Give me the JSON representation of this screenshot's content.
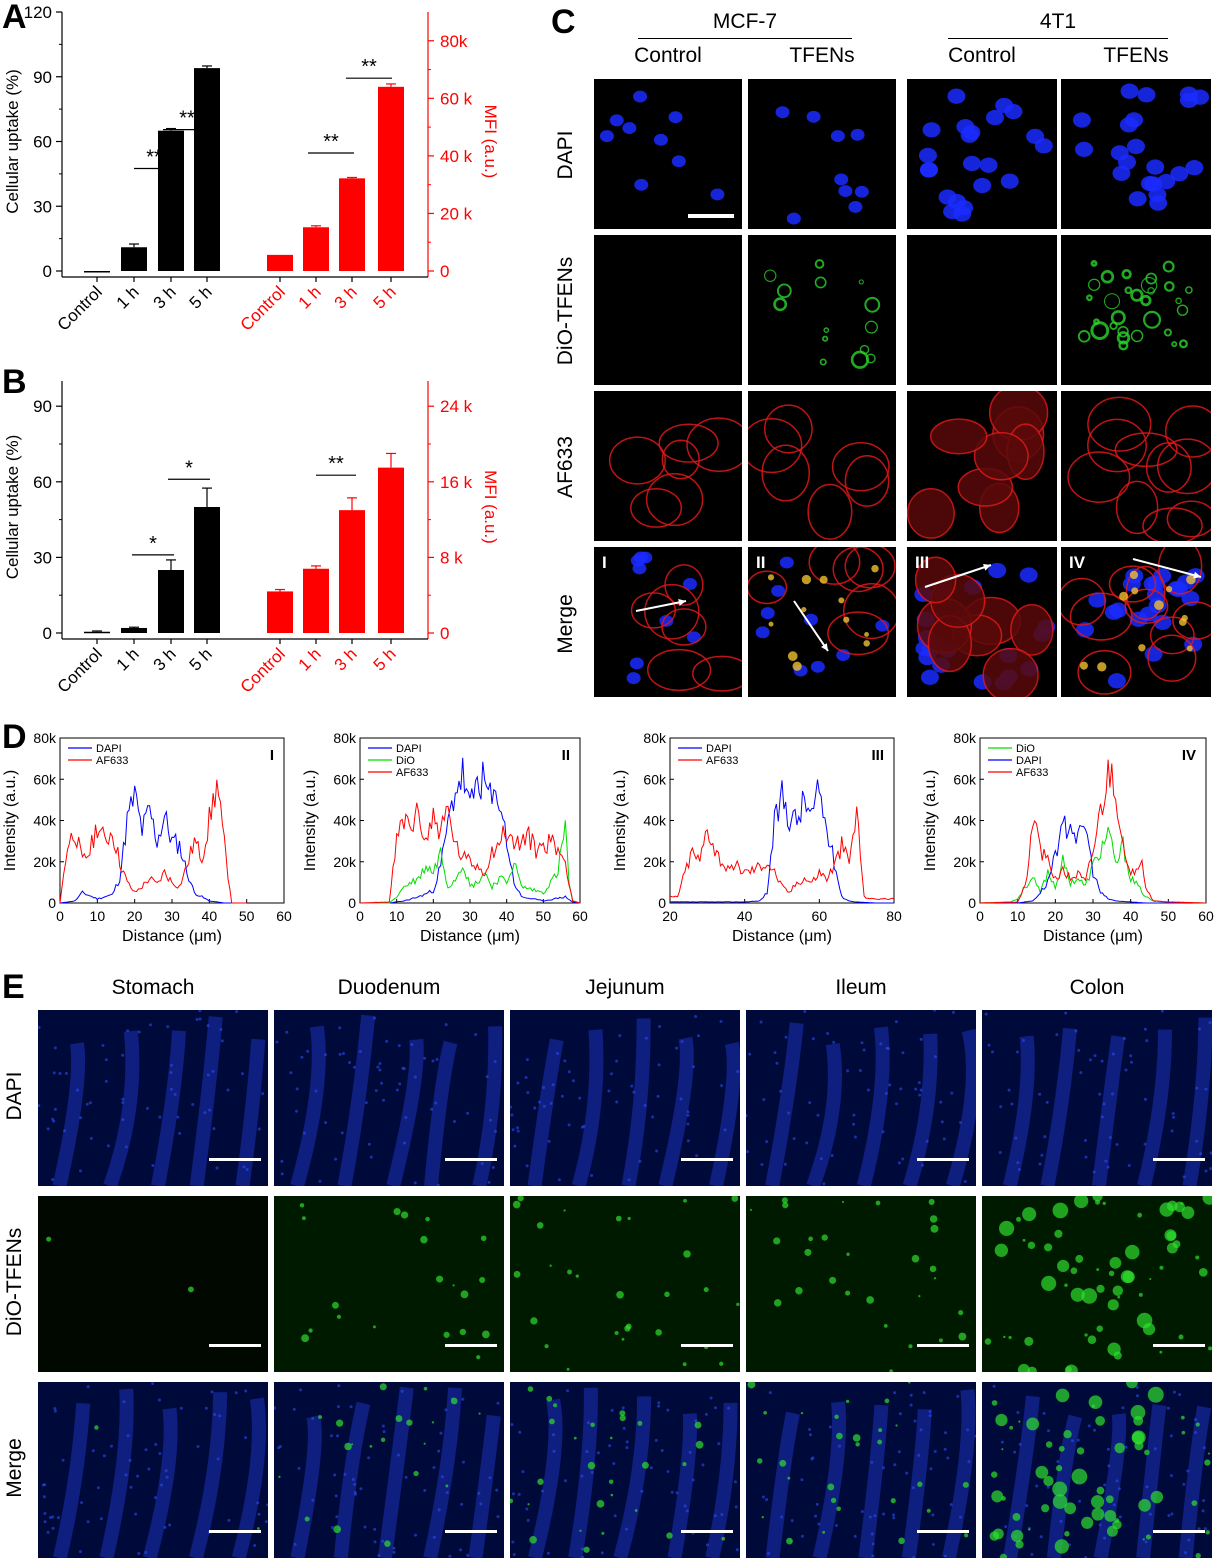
{
  "panels": {
    "A": "A",
    "B": "B",
    "C": "C",
    "D": "D",
    "E": "E"
  },
  "chart_data": [
    {
      "id": "A",
      "type": "bar",
      "left": {
        "ylabel": "Cellular uptake (%)",
        "categories": [
          "Control",
          "1 h",
          "3 h",
          "5 h"
        ],
        "values": [
          0,
          11,
          65,
          94
        ],
        "errors": [
          0,
          1.5,
          1,
          1
        ],
        "ylim": [
          0,
          120
        ],
        "ticks": [
          "0",
          "30",
          "60",
          "90",
          "120"
        ],
        "color": "#000000"
      },
      "right": {
        "ylabel": "MFI (a.u.)",
        "categories": [
          "Control",
          "1 h",
          "3 h",
          "5 h"
        ],
        "values": [
          5600,
          15200,
          32200,
          64000
        ],
        "errors": [
          0,
          500,
          300,
          1000
        ],
        "ylim": [
          0,
          90000
        ],
        "ticks": [
          "0",
          "20 k",
          "40 k",
          "60 k",
          "80k"
        ],
        "color": "#ff0000"
      },
      "sig": [
        "**",
        "**",
        "**",
        "**"
      ]
    },
    {
      "id": "B",
      "type": "bar",
      "left": {
        "ylabel": "Cellular uptake (%)",
        "categories": [
          "Control",
          "1 h",
          "3 h",
          "5 h"
        ],
        "values": [
          0.5,
          2,
          25,
          50
        ],
        "errors": [
          0.3,
          0.3,
          4,
          7.5
        ],
        "ylim": [
          0,
          100
        ],
        "ticks": [
          "0",
          "30",
          "60",
          "90"
        ],
        "color": "#000000"
      },
      "right": {
        "ylabel": "MFI (a.u.)",
        "categories": [
          "Control",
          "1 h",
          "3 h",
          "5 h"
        ],
        "values": [
          4400,
          6800,
          13000,
          17500
        ],
        "errors": [
          200,
          300,
          1300,
          1500
        ],
        "ylim": [
          0,
          26667
        ],
        "ticks": [
          "0",
          "8 k",
          "16 k",
          "24 k"
        ],
        "color": "#ff0000"
      },
      "sig": [
        "*",
        "*",
        "**"
      ]
    },
    {
      "id": "D-I",
      "type": "line",
      "tag": "I",
      "xlabel": "Distance (μm)",
      "ylabel": "Intensity (a.u.)",
      "xlim": [
        0,
        60
      ],
      "xticks": [
        "0",
        "10",
        "20",
        "30",
        "40",
        "50",
        "60"
      ],
      "ylim": [
        0,
        80000
      ],
      "yticks": [
        "0",
        "20k",
        "40k",
        "60k",
        "80k"
      ],
      "series": [
        {
          "name": "DAPI",
          "color": "#0000ff",
          "x": [
            0,
            4,
            6,
            10,
            14,
            16,
            18,
            20,
            22,
            24,
            26,
            28,
            30,
            32,
            34,
            36,
            40,
            44,
            50
          ],
          "y": [
            0,
            1000,
            5000,
            2000,
            4000,
            12000,
            40000,
            52000,
            35000,
            45000,
            30000,
            42000,
            30000,
            28000,
            15000,
            5000,
            1000,
            0,
            0
          ]
        },
        {
          "name": "AF633",
          "color": "#ff0000",
          "x": [
            0,
            2,
            4,
            6,
            8,
            10,
            12,
            14,
            16,
            18,
            20,
            22,
            24,
            26,
            28,
            30,
            32,
            34,
            36,
            38,
            40,
            42,
            44,
            46,
            48,
            50
          ],
          "y": [
            0,
            28000,
            35000,
            20000,
            25000,
            38000,
            30000,
            35000,
            20000,
            10000,
            5000,
            8000,
            12000,
            9000,
            15000,
            10000,
            8000,
            18000,
            30000,
            22000,
            40000,
            58000,
            28000,
            0,
            0,
            0
          ]
        }
      ]
    },
    {
      "id": "D-II",
      "type": "line",
      "tag": "II",
      "xlabel": "Distance (μm)",
      "ylabel": "Intensity (a.u.)",
      "xlim": [
        0,
        60
      ],
      "xticks": [
        "0",
        "10",
        "20",
        "30",
        "40",
        "50",
        "60"
      ],
      "ylim": [
        0,
        80000
      ],
      "yticks": [
        "0",
        "20k",
        "40k",
        "60k",
        "80k"
      ],
      "series": [
        {
          "name": "DAPI",
          "color": "#0000ff",
          "x": [
            0,
            8,
            12,
            16,
            20,
            22,
            24,
            26,
            28,
            30,
            32,
            34,
            36,
            38,
            40,
            42,
            44,
            50,
            56,
            58,
            60
          ],
          "y": [
            0,
            0,
            1000,
            3000,
            6000,
            18000,
            38000,
            55000,
            62000,
            45000,
            60000,
            58000,
            48000,
            52000,
            30000,
            10000,
            3000,
            1000,
            3000,
            500,
            0
          ]
        },
        {
          "name": "DiO",
          "color": "#00dd00",
          "x": [
            0,
            8,
            10,
            12,
            16,
            18,
            20,
            22,
            24,
            26,
            28,
            30,
            32,
            34,
            36,
            38,
            40,
            42,
            44,
            50,
            54,
            56,
            57,
            58,
            60
          ],
          "y": [
            0,
            0,
            3000,
            8000,
            12000,
            18000,
            15000,
            25000,
            8000,
            12000,
            20000,
            8000,
            10000,
            15000,
            8000,
            12000,
            10000,
            20000,
            8000,
            5000,
            15000,
            38000,
            10000,
            1000,
            0
          ]
        },
        {
          "name": "AF633",
          "color": "#ff0000",
          "x": [
            0,
            8,
            10,
            12,
            14,
            16,
            18,
            20,
            22,
            24,
            26,
            28,
            30,
            32,
            34,
            36,
            38,
            40,
            42,
            44,
            46,
            48,
            50,
            52,
            54,
            56,
            58,
            60
          ],
          "y": [
            0,
            500,
            30000,
            40000,
            38000,
            43000,
            30000,
            42000,
            35000,
            45000,
            28000,
            22000,
            20000,
            18000,
            15000,
            25000,
            30000,
            35000,
            28000,
            30000,
            32000,
            26000,
            28000,
            30000,
            26000,
            20000,
            1000,
            0
          ]
        }
      ]
    },
    {
      "id": "D-III",
      "type": "line",
      "tag": "III",
      "xlabel": "Distance (μm)",
      "ylabel": "Intensity (a.u.)",
      "xlim": [
        20,
        80
      ],
      "xticks": [
        "20",
        "40",
        "60",
        "80"
      ],
      "ylim": [
        0,
        80000
      ],
      "yticks": [
        "0",
        "20k",
        "40k",
        "60k",
        "80k"
      ],
      "series": [
        {
          "name": "DAPI",
          "color": "#0000ff",
          "x": [
            20,
            30,
            40,
            44,
            46,
            48,
            50,
            52,
            54,
            56,
            58,
            60,
            62,
            64,
            66,
            68,
            70,
            75,
            80
          ],
          "y": [
            500,
            500,
            500,
            1000,
            5000,
            38000,
            52000,
            42000,
            40000,
            50000,
            42000,
            55000,
            35000,
            20000,
            3000,
            1000,
            500,
            0,
            0
          ]
        },
        {
          "name": "AF633",
          "color": "#ff0000",
          "x": [
            20,
            22,
            24,
            26,
            28,
            30,
            32,
            34,
            36,
            38,
            40,
            42,
            44,
            46,
            48,
            50,
            52,
            54,
            56,
            58,
            60,
            62,
            64,
            66,
            68,
            70,
            72,
            74,
            80
          ],
          "y": [
            3000,
            3000,
            15000,
            25000,
            20000,
            38000,
            26000,
            20000,
            15000,
            18000,
            15000,
            16000,
            18000,
            20000,
            15000,
            8000,
            5000,
            10000,
            12000,
            10000,
            15000,
            12000,
            18000,
            28000,
            20000,
            45000,
            3000,
            2000,
            2000
          ]
        }
      ]
    },
    {
      "id": "D-IV",
      "type": "line",
      "tag": "IV",
      "xlabel": "Distance (μm)",
      "ylabel": "Intensity (a.u.)",
      "xlim": [
        0,
        60
      ],
      "xticks": [
        "0",
        "10",
        "20",
        "30",
        "40",
        "50",
        "60"
      ],
      "ylim": [
        0,
        80000
      ],
      "yticks": [
        "0",
        "20k",
        "40k",
        "60k",
        "80k"
      ],
      "series": [
        {
          "name": "DiO",
          "color": "#00dd00",
          "x": [
            0,
            8,
            10,
            12,
            14,
            16,
            18,
            20,
            22,
            24,
            26,
            28,
            30,
            32,
            34,
            36,
            38,
            40,
            42,
            44,
            46,
            50,
            60
          ],
          "y": [
            0,
            500,
            2000,
            8000,
            12000,
            5000,
            15000,
            8000,
            20000,
            10000,
            12000,
            8000,
            18000,
            25000,
            35000,
            18000,
            28000,
            12000,
            8000,
            3000,
            1000,
            500,
            0
          ]
        },
        {
          "name": "DAPI",
          "color": "#0000ff",
          "x": [
            0,
            10,
            12,
            14,
            16,
            18,
            20,
            22,
            24,
            26,
            28,
            30,
            32,
            34,
            36,
            40,
            44,
            50,
            60
          ],
          "y": [
            0,
            0,
            500,
            1000,
            5000,
            10000,
            25000,
            35000,
            40000,
            30000,
            38000,
            15000,
            5000,
            2000,
            1000,
            500,
            0,
            0,
            0
          ]
        },
        {
          "name": "AF633",
          "color": "#ff0000",
          "x": [
            0,
            10,
            12,
            14,
            15,
            16,
            18,
            20,
            22,
            24,
            26,
            28,
            30,
            32,
            34,
            35,
            36,
            38,
            40,
            42,
            43,
            44,
            46,
            50,
            60
          ],
          "y": [
            0,
            500,
            8000,
            35000,
            42000,
            25000,
            20000,
            12000,
            15000,
            12000,
            14000,
            10000,
            25000,
            45000,
            62000,
            65000,
            58000,
            25000,
            12000,
            20000,
            23000,
            8000,
            1000,
            500,
            0
          ]
        }
      ]
    }
  ],
  "panelC": {
    "groups": [
      "MCF-7",
      "4T1"
    ],
    "cols": [
      "Control",
      "TFENs",
      "Control",
      "TFENs"
    ],
    "rows": [
      "DAPI",
      "DiO-TFENs",
      "AF633",
      "Merge"
    ],
    "merge_tags": [
      "I",
      "II",
      "III",
      "IV"
    ]
  },
  "panelE": {
    "cols": [
      "Stomach",
      "Duodenum",
      "Jejunum",
      "Ileum",
      "Colon"
    ],
    "rows": [
      "DAPI",
      "DiO-TFENs",
      "Merge"
    ]
  }
}
